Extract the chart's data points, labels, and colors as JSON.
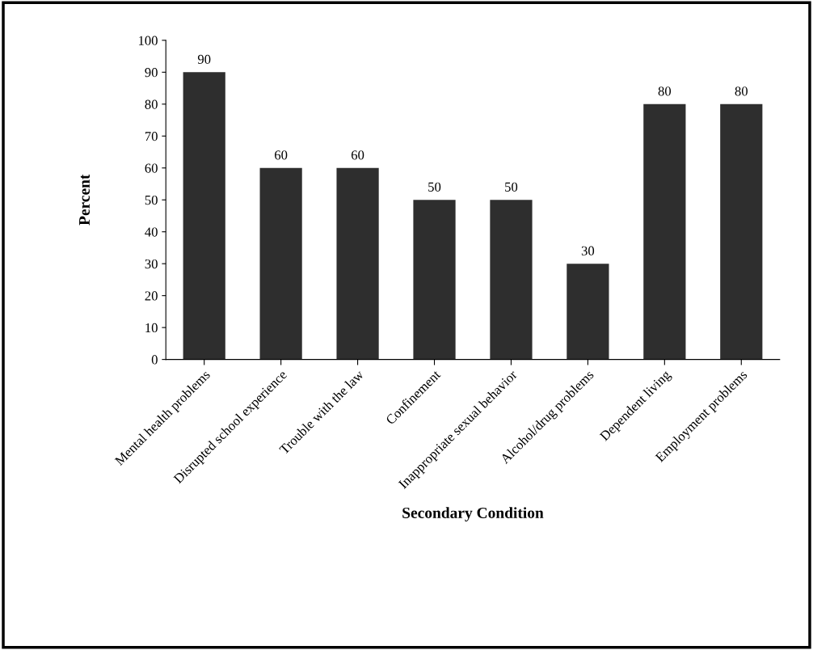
{
  "chart_data": {
    "type": "bar",
    "xlabel": "Secondary Condition",
    "ylabel": "Percent",
    "categories": [
      "Mental health problems",
      "Disrupted school experience",
      "Trouble with the law",
      "Confinement",
      "Inappropriate sexual behavior",
      "Alcohol/drug problems",
      "Dependent living",
      "Employment problems"
    ],
    "values": [
      90,
      60,
      60,
      50,
      50,
      30,
      80,
      80
    ],
    "color": "#2e2e2e",
    "ylim": [
      0,
      100
    ],
    "yticks": [
      0,
      10,
      20,
      30,
      40,
      50,
      60,
      70,
      80,
      90,
      100
    ],
    "data_labels": true,
    "grid": false,
    "legend": false
  }
}
